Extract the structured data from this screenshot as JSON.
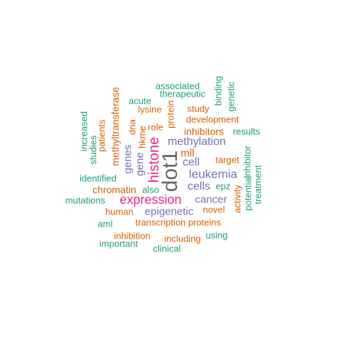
{
  "colors": {
    "green": "#1b9e77",
    "orange": "#d95f02",
    "purple": "#7570b3",
    "magenta": "#e7298a",
    "gray": "#666666"
  },
  "words": [
    {
      "text": "dot1",
      "color": "gray"
    },
    {
      "text": "histone",
      "color": "magenta"
    },
    {
      "text": "expression",
      "color": "magenta"
    },
    {
      "text": "leukemia",
      "color": "purple"
    },
    {
      "text": "methylation",
      "color": "purple"
    },
    {
      "text": "cells",
      "color": "purple"
    },
    {
      "text": "cell",
      "color": "purple"
    },
    {
      "text": "epigenetic",
      "color": "purple"
    },
    {
      "text": "cancer",
      "color": "purple"
    },
    {
      "text": "genes",
      "color": "purple"
    },
    {
      "text": "gene",
      "color": "purple"
    },
    {
      "text": "mll",
      "color": "orange"
    },
    {
      "text": "inhibitors",
      "color": "orange"
    },
    {
      "text": "methyltransferase",
      "color": "orange"
    },
    {
      "text": "chromatin",
      "color": "orange"
    },
    {
      "text": "development",
      "color": "orange"
    },
    {
      "text": "target",
      "color": "orange"
    },
    {
      "text": "hkme",
      "color": "orange"
    },
    {
      "text": "human",
      "color": "orange"
    },
    {
      "text": "transcription",
      "color": "orange"
    },
    {
      "text": "proteins",
      "color": "orange"
    },
    {
      "text": "novel",
      "color": "orange"
    },
    {
      "text": "inhibition",
      "color": "orange"
    },
    {
      "text": "including",
      "color": "orange"
    },
    {
      "text": "lysine",
      "color": "orange"
    },
    {
      "text": "role",
      "color": "orange"
    },
    {
      "text": "protein",
      "color": "orange"
    },
    {
      "text": "dna",
      "color": "orange"
    },
    {
      "text": "patients",
      "color": "orange"
    },
    {
      "text": "study",
      "color": "orange"
    },
    {
      "text": "activity",
      "color": "orange"
    },
    {
      "text": "associated",
      "color": "green"
    },
    {
      "text": "therapeutic",
      "color": "green"
    },
    {
      "text": "acute",
      "color": "green"
    },
    {
      "text": "binding",
      "color": "green"
    },
    {
      "text": "genetic",
      "color": "green"
    },
    {
      "text": "results",
      "color": "green"
    },
    {
      "text": "increased",
      "color": "green"
    },
    {
      "text": "studies",
      "color": "green"
    },
    {
      "text": "identified",
      "color": "green"
    },
    {
      "text": "also",
      "color": "green"
    },
    {
      "text": "epz",
      "color": "green"
    },
    {
      "text": "inhibitor",
      "color": "green"
    },
    {
      "text": "potential",
      "color": "green"
    },
    {
      "text": "treatment",
      "color": "green"
    },
    {
      "text": "mutations",
      "color": "green"
    },
    {
      "text": "aml",
      "color": "green"
    },
    {
      "text": "using",
      "color": "green"
    },
    {
      "text": "important",
      "color": "green"
    },
    {
      "text": "clinical",
      "color": "green"
    }
  ]
}
